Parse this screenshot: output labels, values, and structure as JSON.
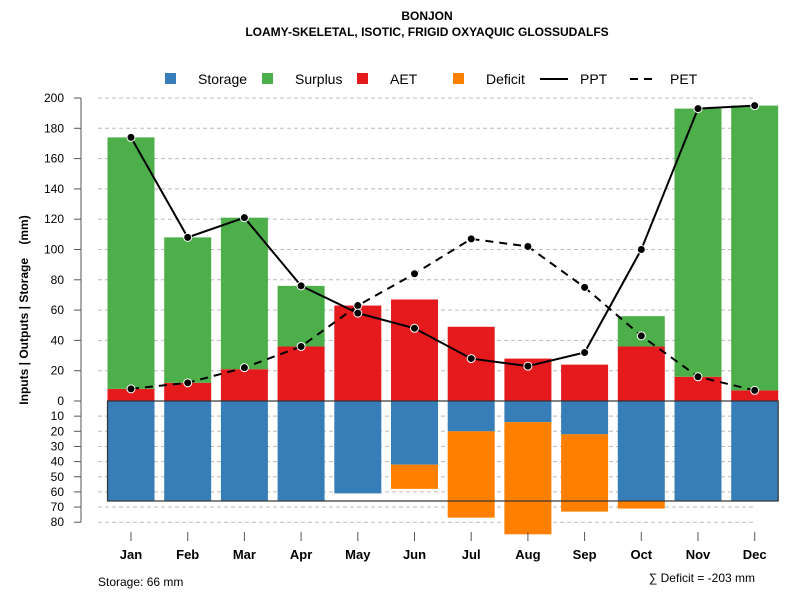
{
  "chart_data": {
    "type": "bar",
    "title": "BONJON",
    "subtitle": "LOAMY-SKELETAL, ISOTIC, FRIGID OXYAQUIC GLOSSUDALFS",
    "ylabel": "Inputs | Outputs | Storage    (mm)",
    "ylim": [
      -80,
      200
    ],
    "yticks_upper": [
      0,
      20,
      40,
      60,
      80,
      100,
      120,
      140,
      160,
      180,
      200
    ],
    "yticks_lower": [
      10,
      20,
      30,
      40,
      50,
      60,
      70,
      80
    ],
    "categories": [
      "Jan",
      "Feb",
      "Mar",
      "Apr",
      "May",
      "Jun",
      "Jul",
      "Aug",
      "Sep",
      "Oct",
      "Nov",
      "Dec"
    ],
    "legend": [
      "Storage",
      "Surplus",
      "AET",
      "Deficit",
      "PPT",
      "PET"
    ],
    "legend_placement": "top",
    "colors": {
      "Storage": "#377eb8",
      "Surplus": "#4daf4a",
      "AET": "#e41a1c",
      "Deficit": "#ff7f00",
      "PPT": "#000000",
      "PET": "#000000"
    },
    "series": [
      {
        "name": "AET",
        "values": [
          8,
          12,
          21,
          36,
          63,
          67,
          49,
          28,
          24,
          36,
          16,
          7
        ]
      },
      {
        "name": "Surplus",
        "values": [
          166,
          96,
          100,
          40,
          0,
          0,
          0,
          0,
          0,
          20,
          177,
          188
        ]
      },
      {
        "name": "Storage",
        "values": [
          66,
          66,
          66,
          66,
          61,
          42,
          20,
          14,
          22,
          66,
          66,
          66
        ]
      },
      {
        "name": "Deficit",
        "values": [
          0,
          0,
          0,
          0,
          0,
          16,
          57,
          74,
          51,
          5,
          0,
          0
        ]
      },
      {
        "name": "PPT",
        "values": [
          174,
          108,
          121,
          76,
          58,
          48,
          28,
          23,
          32,
          100,
          193,
          195
        ]
      },
      {
        "name": "PET",
        "values": [
          8,
          12,
          22,
          36,
          63,
          84,
          107,
          102,
          75,
          43,
          16,
          7
        ]
      }
    ],
    "storage_capacity": 66,
    "storage_note": "Storage: 66 mm",
    "deficit_note": "∑ Deficit = -203 mm"
  }
}
